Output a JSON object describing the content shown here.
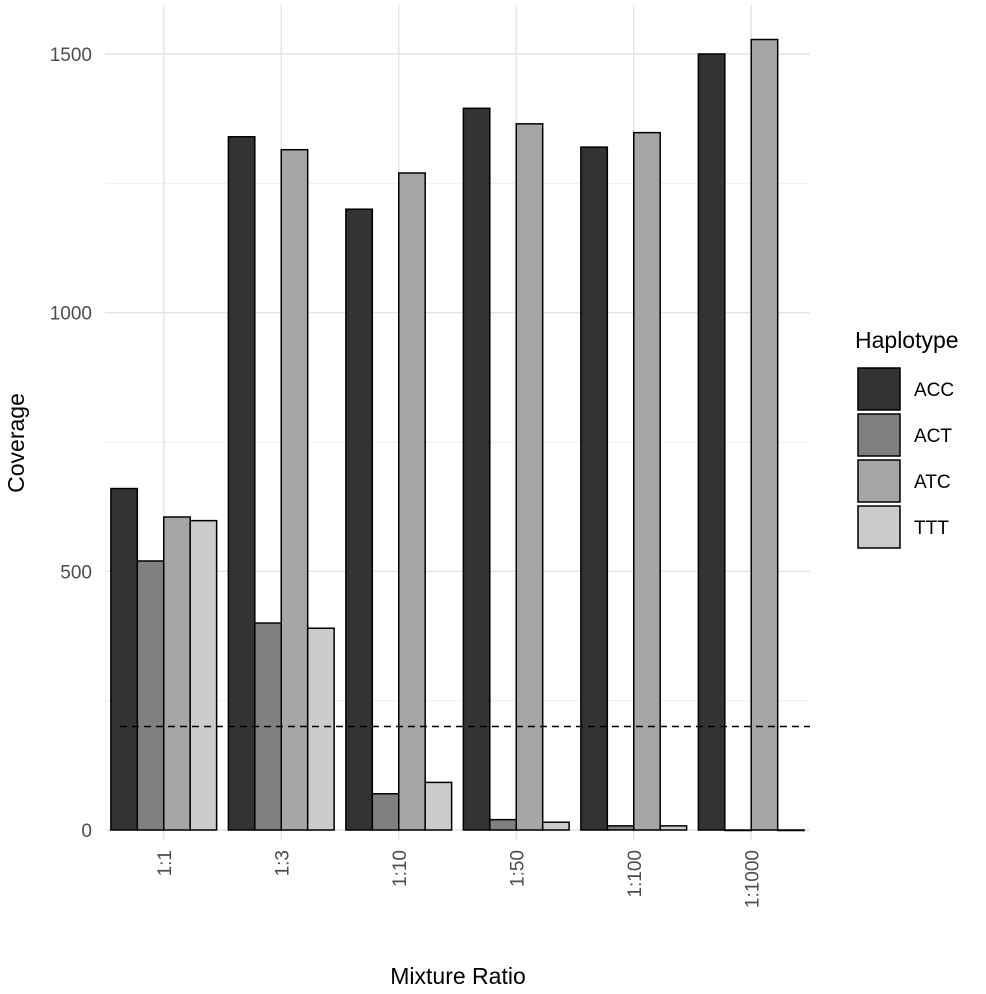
{
  "chart_data": {
    "type": "bar",
    "xlabel": "Mixture Ratio",
    "ylabel": "Coverage",
    "categories": [
      "1:1",
      "1:3",
      "1:10",
      "1:50",
      "1:100",
      "1:1000"
    ],
    "ylim": [
      0,
      1540
    ],
    "yticks": [
      0,
      500,
      1000,
      1500
    ],
    "grid": true,
    "legend": {
      "title": "Haplotype",
      "position": "right"
    },
    "series": [
      {
        "name": "ACC",
        "color": "#333333",
        "values": [
          660,
          1340,
          1200,
          1395,
          1320,
          1500
        ]
      },
      {
        "name": "ACT",
        "color": "#808080",
        "values": [
          520,
          400,
          70,
          20,
          8,
          0
        ]
      },
      {
        "name": "ATC",
        "color": "#a6a6a6",
        "values": [
          605,
          1315,
          1270,
          1365,
          1348,
          1528
        ]
      },
      {
        "name": "TTT",
        "color": "#cccccc",
        "values": [
          598,
          390,
          92,
          15,
          8,
          0
        ]
      }
    ],
    "reference_line": {
      "y": 200,
      "style": "dashed"
    }
  }
}
